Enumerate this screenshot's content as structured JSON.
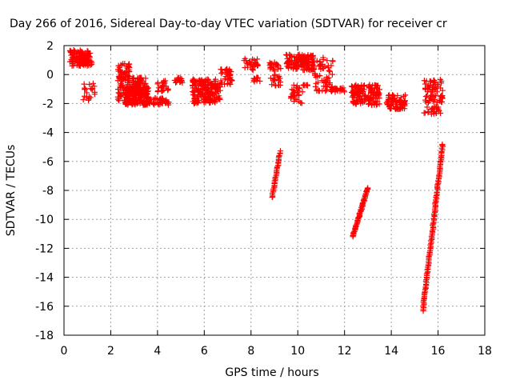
{
  "chart_data": {
    "type": "scatter",
    "title": "Day 266 of 2016, Sidereal Day-to-day VTEC variation (SDTVAR) for receiver cr",
    "xlabel": "GPS time / hours",
    "ylabel": "SDTVAR / TECUs",
    "xlim": [
      0,
      18
    ],
    "ylim": [
      -18,
      2
    ],
    "xticks": [
      0,
      2,
      4,
      6,
      8,
      10,
      12,
      14,
      16,
      18
    ],
    "yticks": [
      -18,
      -16,
      -14,
      -12,
      -10,
      -8,
      -6,
      -4,
      -2,
      0,
      2
    ],
    "grid": true,
    "marker": "+",
    "color": "#ff0000",
    "clusters": [
      {
        "x": [
          0.25,
          1.2
        ],
        "y": [
          0.6,
          1.7
        ],
        "count": 120
      },
      {
        "x": [
          0.8,
          1.4
        ],
        "y": [
          -1.8,
          -0.6
        ],
        "count": 20
      },
      {
        "x": [
          2.3,
          2.8
        ],
        "y": [
          -1.8,
          0.8
        ],
        "count": 90
      },
      {
        "x": [
          2.6,
          3.6
        ],
        "y": [
          -2.1,
          -0.8
        ],
        "count": 160
      },
      {
        "x": [
          2.8,
          3.5
        ],
        "y": [
          -1.4,
          -0.2
        ],
        "count": 60
      },
      {
        "x": [
          3.4,
          4.5
        ],
        "y": [
          -2.1,
          -1.6
        ],
        "count": 60
      },
      {
        "x": [
          4.0,
          4.5
        ],
        "y": [
          -1.2,
          -0.4
        ],
        "count": 25
      },
      {
        "x": [
          4.7,
          5.1
        ],
        "y": [
          -0.6,
          -0.2
        ],
        "count": 20
      },
      {
        "x": [
          5.5,
          6.5
        ],
        "y": [
          -2.0,
          -0.3
        ],
        "count": 160
      },
      {
        "x": [
          6.2,
          6.7
        ],
        "y": [
          -1.9,
          -0.6
        ],
        "count": 40
      },
      {
        "x": [
          6.7,
          7.2
        ],
        "y": [
          -0.7,
          0.4
        ],
        "count": 40
      },
      {
        "x": [
          7.7,
          8.3
        ],
        "y": [
          0.3,
          1.1
        ],
        "count": 30
      },
      {
        "x": [
          8.1,
          8.4
        ],
        "y": [
          -0.5,
          -0.2
        ],
        "count": 10
      },
      {
        "x": [
          8.8,
          9.3
        ],
        "y": [
          -0.8,
          0.9
        ],
        "count": 40
      },
      {
        "x": [
          9.5,
          10.7
        ],
        "y": [
          0.3,
          1.4
        ],
        "count": 130
      },
      {
        "x": [
          9.7,
          10.2
        ],
        "y": [
          -2.0,
          -0.7
        ],
        "count": 30
      },
      {
        "x": [
          10.2,
          10.5
        ],
        "y": [
          -0.8,
          -0.7
        ],
        "count": 6
      },
      {
        "x": [
          10.7,
          11.5
        ],
        "y": [
          -1.2,
          1.2
        ],
        "count": 60
      },
      {
        "x": [
          11.4,
          12.0
        ],
        "y": [
          -1.2,
          -0.9
        ],
        "count": 20
      },
      {
        "x": [
          12.3,
          13.5
        ],
        "y": [
          -2.1,
          -0.7
        ],
        "count": 150
      },
      {
        "x": [
          13.8,
          14.6
        ],
        "y": [
          -2.4,
          -1.4
        ],
        "count": 80
      },
      {
        "x": [
          15.4,
          16.2
        ],
        "y": [
          -1.2,
          -0.3
        ],
        "count": 40
      },
      {
        "x": [
          15.4,
          16.2
        ],
        "y": [
          -2.0,
          -1.4
        ],
        "count": 30
      },
      {
        "x": [
          15.4,
          16.2
        ],
        "y": [
          -2.8,
          -2.2
        ],
        "count": 25
      }
    ],
    "tracks": [
      {
        "x": [
          8.9,
          9.25
        ],
        "y": [
          -8.5,
          -5.3
        ],
        "count": 35
      },
      {
        "x": [
          12.35,
          13.0
        ],
        "y": [
          -11.2,
          -7.8
        ],
        "count": 60
      },
      {
        "x": [
          15.35,
          16.2
        ],
        "y": [
          -16.3,
          -4.8
        ],
        "count": 120
      }
    ]
  }
}
